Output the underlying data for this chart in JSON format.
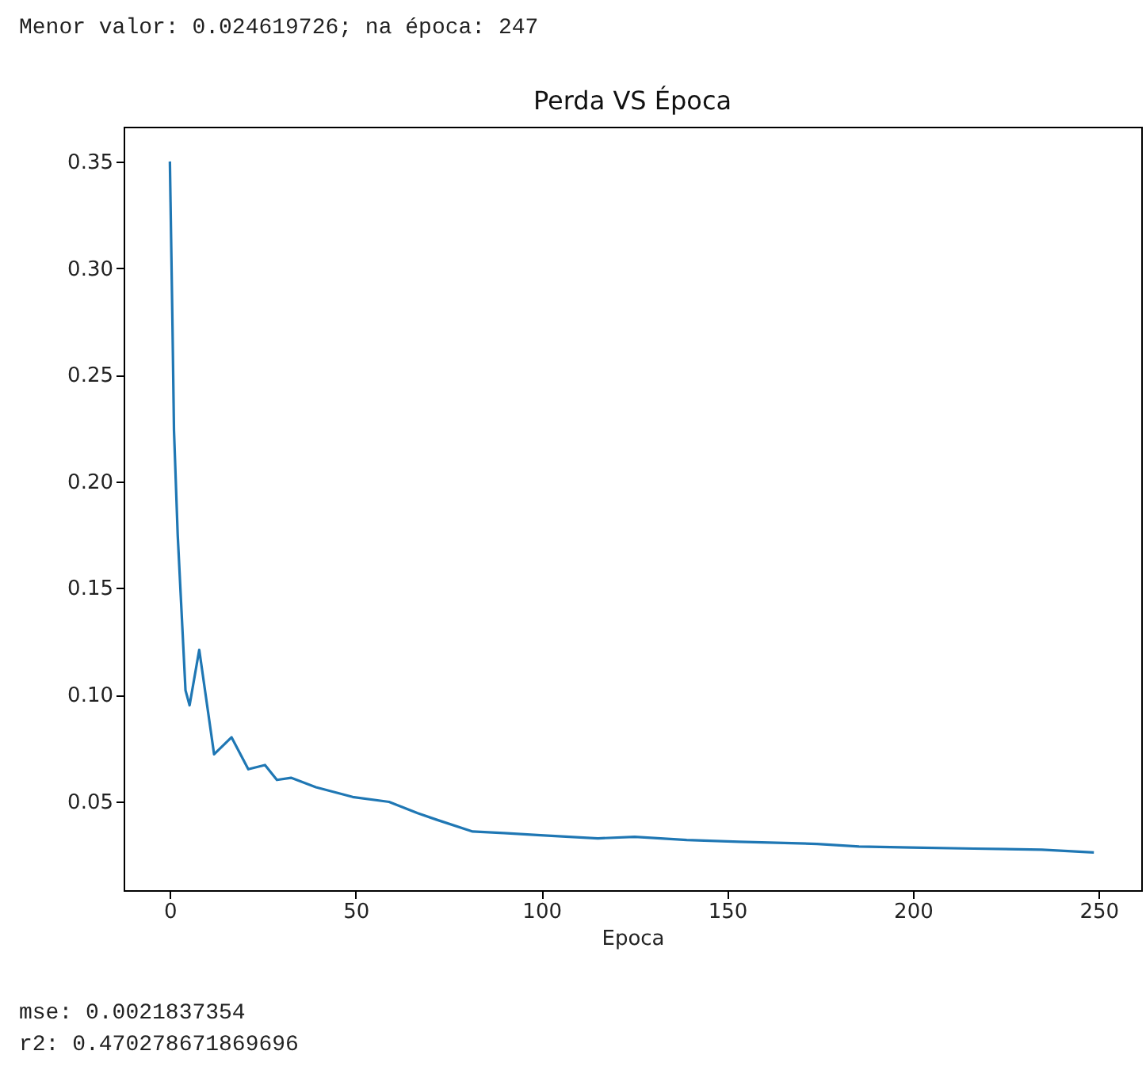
{
  "chart_data": {
    "type": "line",
    "title": "Perda VS Época",
    "xlabel": "Epoca",
    "annotations": [
      "Menor valor: 0.024619726; na época: 247",
      "mse: 0.0021837354",
      "r2: 0.470278671869696"
    ],
    "x": [
      0,
      0.7,
      1.1,
      2.1,
      4.2,
      5.3,
      7.9,
      11.9,
      16.6,
      21.1,
      25.6,
      28.8,
      32.6,
      39.3,
      49.2,
      59,
      66.7,
      71.7,
      81.5,
      89.9,
      99.8,
      115.2,
      125.1,
      139.1,
      153.2,
      174.2,
      185.5,
      199.5,
      216.4,
      234.7,
      248.7
    ],
    "series": [
      {
        "color": "#1f77b4",
        "values": [
          0.35,
          0.273,
          0.224,
          0.175,
          0.102,
          0.095,
          0.121,
          0.072,
          0.08,
          0.065,
          0.067,
          0.06,
          0.061,
          0.0566,
          0.052,
          0.0497,
          0.0444,
          0.0414,
          0.0358,
          0.0351,
          0.0341,
          0.0326,
          0.0333,
          0.0318,
          0.031,
          0.03,
          0.0288,
          0.0283,
          0.0278,
          0.0273,
          0.026
        ]
      }
    ],
    "xlim": [
      -12.45,
      261.45
    ],
    "xticks": [
      0,
      50,
      100,
      150,
      200,
      250
    ],
    "ylim": [
      0.0083,
      0.3663
    ],
    "yticks": [
      0.05,
      {
        "value": 0.1,
        "label": "0.10"
      },
      0.15,
      {
        "value": 0.2,
        "label": "0.20"
      },
      0.25,
      {
        "value": 0.3,
        "label": "0.30"
      },
      0.35
    ],
    "grid": false,
    "marker": "none",
    "line_style": "solid"
  }
}
